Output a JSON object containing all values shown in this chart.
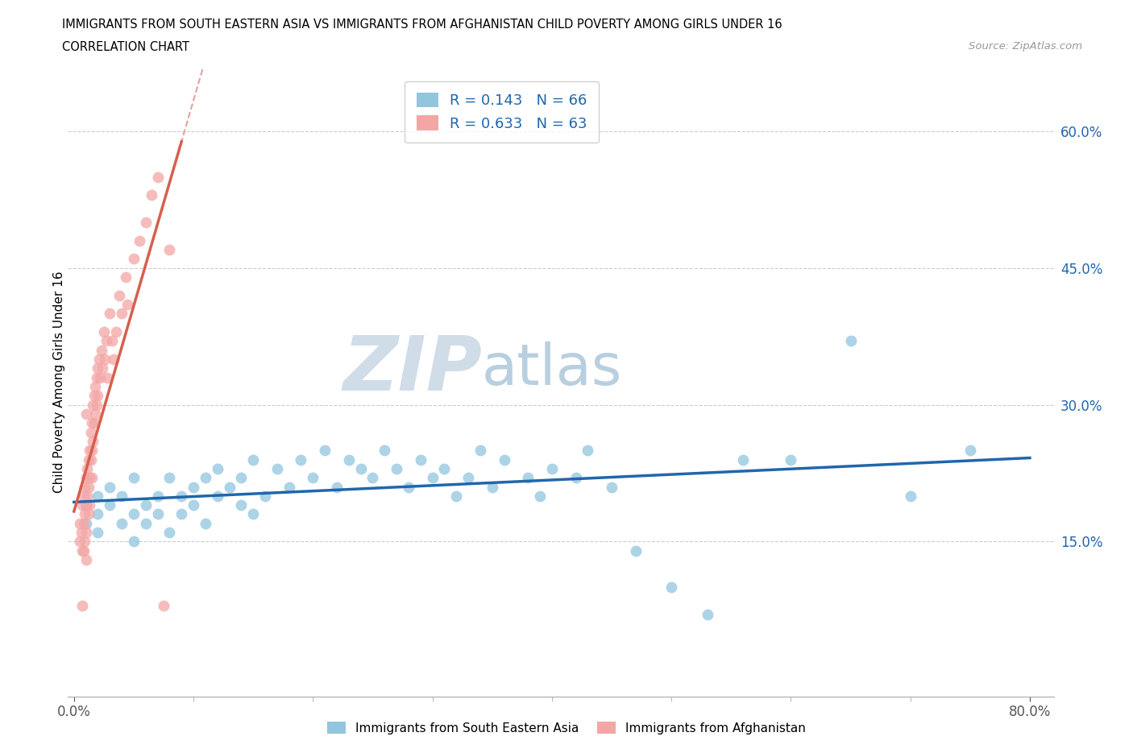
{
  "title_line1": "IMMIGRANTS FROM SOUTH EASTERN ASIA VS IMMIGRANTS FROM AFGHANISTAN CHILD POVERTY AMONG GIRLS UNDER 16",
  "title_line2": "CORRELATION CHART",
  "source_text": "Source: ZipAtlas.com",
  "ylabel": "Child Poverty Among Girls Under 16",
  "ytick_labels": [
    "15.0%",
    "30.0%",
    "45.0%",
    "60.0%"
  ],
  "ytick_values": [
    0.15,
    0.3,
    0.45,
    0.6
  ],
  "xtick_labels": [
    "0.0%",
    "80.0%"
  ],
  "xtick_values": [
    0.0,
    0.8
  ],
  "xlim": [
    -0.005,
    0.82
  ],
  "ylim": [
    -0.02,
    0.67
  ],
  "r_sea": 0.143,
  "n_sea": 66,
  "r_afg": 0.633,
  "n_afg": 63,
  "color_sea": "#92c5de",
  "color_afg": "#f4a6a6",
  "color_sea_line": "#2166ac",
  "color_afg_line": "#d6604d",
  "color_afg_dashed": "#e8a0a0",
  "watermark_zip": "ZIP",
  "watermark_atlas": "atlas",
  "watermark_color_zip": "#d0dce8",
  "watermark_color_atlas": "#b8cfe0",
  "legend_color": "#2166ac",
  "sea_x": [
    0.01,
    0.01,
    0.02,
    0.02,
    0.02,
    0.03,
    0.03,
    0.04,
    0.04,
    0.05,
    0.05,
    0.05,
    0.06,
    0.06,
    0.07,
    0.07,
    0.08,
    0.08,
    0.09,
    0.09,
    0.1,
    0.1,
    0.11,
    0.11,
    0.12,
    0.12,
    0.13,
    0.14,
    0.14,
    0.15,
    0.15,
    0.16,
    0.17,
    0.18,
    0.19,
    0.2,
    0.21,
    0.22,
    0.23,
    0.24,
    0.25,
    0.26,
    0.27,
    0.28,
    0.29,
    0.3,
    0.31,
    0.32,
    0.33,
    0.34,
    0.35,
    0.36,
    0.38,
    0.39,
    0.4,
    0.42,
    0.43,
    0.45,
    0.47,
    0.5,
    0.53,
    0.56,
    0.6,
    0.65,
    0.7,
    0.75
  ],
  "sea_y": [
    0.17,
    0.19,
    0.18,
    0.2,
    0.16,
    0.19,
    0.21,
    0.17,
    0.2,
    0.18,
    0.22,
    0.15,
    0.19,
    0.17,
    0.2,
    0.18,
    0.22,
    0.16,
    0.2,
    0.18,
    0.21,
    0.19,
    0.22,
    0.17,
    0.2,
    0.23,
    0.21,
    0.19,
    0.22,
    0.18,
    0.24,
    0.2,
    0.23,
    0.21,
    0.24,
    0.22,
    0.25,
    0.21,
    0.24,
    0.23,
    0.22,
    0.25,
    0.23,
    0.21,
    0.24,
    0.22,
    0.23,
    0.2,
    0.22,
    0.25,
    0.21,
    0.24,
    0.22,
    0.2,
    0.23,
    0.22,
    0.25,
    0.21,
    0.14,
    0.1,
    0.07,
    0.24,
    0.24,
    0.37,
    0.2,
    0.25
  ],
  "afg_x": [
    0.005,
    0.005,
    0.006,
    0.007,
    0.007,
    0.007,
    0.008,
    0.008,
    0.008,
    0.009,
    0.009,
    0.009,
    0.01,
    0.01,
    0.01,
    0.01,
    0.011,
    0.011,
    0.012,
    0.012,
    0.012,
    0.013,
    0.013,
    0.013,
    0.014,
    0.014,
    0.015,
    0.015,
    0.015,
    0.016,
    0.016,
    0.017,
    0.017,
    0.018,
    0.018,
    0.019,
    0.019,
    0.02,
    0.02,
    0.021,
    0.022,
    0.023,
    0.024,
    0.025,
    0.026,
    0.027,
    0.028,
    0.03,
    0.032,
    0.033,
    0.035,
    0.038,
    0.04,
    0.043,
    0.045,
    0.05,
    0.055,
    0.06,
    0.065,
    0.07,
    0.075,
    0.08,
    0.01
  ],
  "afg_y": [
    0.15,
    0.17,
    0.16,
    0.19,
    0.14,
    0.08,
    0.2,
    0.17,
    0.14,
    0.21,
    0.18,
    0.15,
    0.22,
    0.19,
    0.16,
    0.13,
    0.23,
    0.2,
    0.24,
    0.21,
    0.18,
    0.25,
    0.22,
    0.19,
    0.27,
    0.24,
    0.28,
    0.25,
    0.22,
    0.3,
    0.26,
    0.31,
    0.28,
    0.32,
    0.29,
    0.33,
    0.3,
    0.34,
    0.31,
    0.35,
    0.33,
    0.36,
    0.34,
    0.38,
    0.35,
    0.37,
    0.33,
    0.4,
    0.37,
    0.35,
    0.38,
    0.42,
    0.4,
    0.44,
    0.41,
    0.46,
    0.48,
    0.5,
    0.53,
    0.55,
    0.08,
    0.47,
    0.29
  ]
}
